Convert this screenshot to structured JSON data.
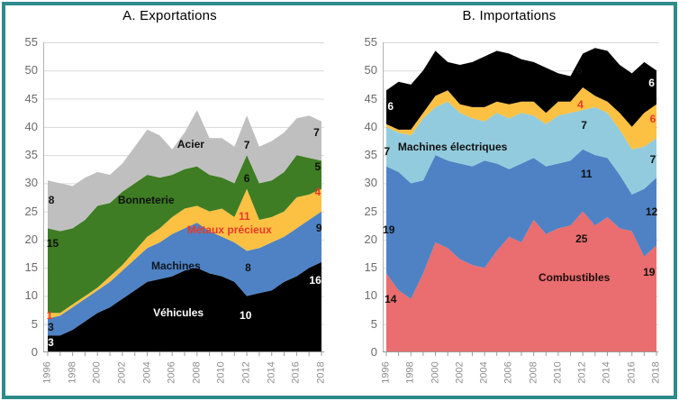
{
  "frame": {
    "border_color": "#2e8b8b",
    "background": "#ffffff"
  },
  "palette": {
    "gridline": "#d9d9d9",
    "axis_line": "#b3b3b3",
    "tick_line": "#9a9a9a",
    "red_label": "#e8392a",
    "y_label_color": "#6b6b6b",
    "x_label_color": "#8c8c8c"
  },
  "chart_data": [
    {
      "title": "A. Exportations",
      "type": "area",
      "stacked": true,
      "grid": true,
      "ylim": [
        0,
        55
      ],
      "y_ticks": [
        0,
        5,
        10,
        15,
        20,
        25,
        30,
        35,
        40,
        45,
        50,
        55
      ],
      "x": [
        1996,
        1997,
        1998,
        1999,
        2000,
        2001,
        2002,
        2003,
        2004,
        2005,
        2006,
        2007,
        2008,
        2009,
        2010,
        2011,
        2012,
        2013,
        2014,
        2015,
        2016,
        2017,
        2018
      ],
      "x_tick_labels": [
        "1996",
        "1998",
        "2000",
        "2002",
        "2004",
        "2006",
        "2008",
        "2010",
        "2012",
        "2014",
        "2016",
        "2018"
      ],
      "series": [
        {
          "id": "vehicules",
          "label": "Véhicules",
          "color": "#000000",
          "values": [
            3,
            3,
            4,
            5.5,
            7,
            8,
            9.5,
            11,
            12.5,
            13,
            13.5,
            14.5,
            15,
            14,
            13.5,
            12.5,
            10,
            10.5,
            11,
            12.5,
            13.5,
            15,
            16
          ]
        },
        {
          "id": "machines",
          "label": "Machines",
          "color": "#4e82c4",
          "values": [
            3,
            3.5,
            4,
            4,
            4,
            4.5,
            5,
            5.5,
            6,
            6.5,
            7.5,
            7.5,
            8,
            7.5,
            7,
            7,
            8,
            8,
            8.5,
            8,
            8.5,
            8.5,
            9
          ]
        },
        {
          "id": "metaux-precieux",
          "label": "Métaux précieux",
          "color": "#fcc143",
          "values": [
            1,
            0.5,
            0.5,
            0.5,
            0.5,
            1,
            1,
            1.5,
            2,
            2.5,
            3,
            3.5,
            3,
            3.5,
            5,
            4.5,
            11,
            5,
            4.5,
            4.5,
            5.5,
            4.5,
            4
          ]
        },
        {
          "id": "bonneterie",
          "label": "Bonneterie",
          "color": "#3e7d23",
          "values": [
            15,
            14.5,
            13.5,
            13.5,
            14.5,
            13,
            13,
            12,
            11,
            9,
            7.5,
            7,
            7,
            6.5,
            5.5,
            6,
            6,
            6.5,
            6.5,
            7,
            7.5,
            6.5,
            5
          ]
        },
        {
          "id": "acier",
          "label": "Acier",
          "color": "#bfbfbf",
          "values": [
            8.5,
            8.5,
            7.5,
            7.5,
            6,
            5,
            5,
            6.5,
            8,
            7.5,
            4.5,
            6.5,
            10,
            6.5,
            7,
            6.5,
            7,
            6.5,
            7,
            7,
            6.5,
            7.5,
            7
          ]
        }
      ],
      "annotations": [
        {
          "text": "Acier",
          "year": 2007.5,
          "value": 37.0,
          "color": "#111111"
        },
        {
          "text": "7",
          "year": 2012.0,
          "value": 36.8,
          "color": "#111111"
        },
        {
          "text": "7",
          "year": 2017.6,
          "value": 39.0,
          "color": "#111111"
        },
        {
          "text": "Bonneterie",
          "year": 2003.9,
          "value": 27.0,
          "color": "#111111"
        },
        {
          "text": "6",
          "year": 2012.0,
          "value": 30.8,
          "color": "#111111"
        },
        {
          "text": "5",
          "year": 2017.7,
          "value": 33.0,
          "color": "#111111"
        },
        {
          "text": "8",
          "year": 1996.3,
          "value": 27.0,
          "color": "#111111"
        },
        {
          "text": "15",
          "year": 1996.4,
          "value": 19.3,
          "color": "#111111"
        },
        {
          "text": "Métaux précieux",
          "year": 2010.6,
          "value": 21.8,
          "color": "#e8392a"
        },
        {
          "text": "11",
          "year": 2011.8,
          "value": 24.2,
          "color": "#e8392a"
        },
        {
          "text": "4",
          "year": 2017.7,
          "value": 28.4,
          "color": "#e8392a"
        },
        {
          "text": "1",
          "year": 1996.15,
          "value": 6.6,
          "color": "#e8392a"
        },
        {
          "text": "Machines",
          "year": 2006.3,
          "value": 15.4,
          "color": "#10161f"
        },
        {
          "text": "8",
          "year": 2012.1,
          "value": 15.0,
          "color": "#111111"
        },
        {
          "text": "9",
          "year": 2017.8,
          "value": 22.0,
          "color": "#111111"
        },
        {
          "text": "3",
          "year": 1996.25,
          "value": 4.5,
          "color": "#111111"
        },
        {
          "text": "Véhicules",
          "year": 2006.5,
          "value": 7.1,
          "color": "#ffffff"
        },
        {
          "text": "10",
          "year": 2011.9,
          "value": 6.5,
          "color": "#ffffff"
        },
        {
          "text": "16",
          "year": 2017.5,
          "value": 12.8,
          "color": "#ffffff"
        },
        {
          "text": "3",
          "year": 1996.25,
          "value": 1.8,
          "color": "#ffffff"
        }
      ]
    },
    {
      "title": "B. Importations",
      "type": "area",
      "stacked": true,
      "grid": true,
      "ylim": [
        0,
        55
      ],
      "y_ticks": [
        0,
        5,
        10,
        15,
        20,
        25,
        30,
        35,
        40,
        45,
        50,
        55
      ],
      "x": [
        1996,
        1997,
        1998,
        1999,
        2000,
        2001,
        2002,
        2003,
        2004,
        2005,
        2006,
        2007,
        2008,
        2009,
        2010,
        2011,
        2012,
        2013,
        2014,
        2015,
        2016,
        2017,
        2018
      ],
      "x_tick_labels": [
        "1996",
        "1998",
        "2000",
        "2002",
        "2004",
        "2006",
        "2008",
        "2010",
        "2012",
        "2014",
        "2016",
        "2018"
      ],
      "series": [
        {
          "id": "combustibles",
          "label": "Combustibles",
          "color": "#ea6d6f",
          "values": [
            14,
            11,
            9.5,
            14,
            19.5,
            18.5,
            16.5,
            15.5,
            15,
            18,
            20.5,
            19.5,
            23.5,
            21,
            22,
            22.5,
            25,
            22.5,
            24,
            22,
            21.5,
            17,
            19
          ]
        },
        {
          "id": "serie-bleue",
          "label": "",
          "color": "#4e82c4",
          "values": [
            19,
            21,
            20.5,
            16.5,
            15.5,
            15.5,
            17,
            17.5,
            19,
            15.5,
            12,
            14,
            11,
            12,
            11.5,
            11.5,
            11,
            12.5,
            10.5,
            9.5,
            6.5,
            12,
            12
          ]
        },
        {
          "id": "machines-electriques",
          "label": "Machines électriques",
          "color": "#92cbdd",
          "values": [
            7,
            7,
            8.5,
            11,
            8.5,
            10.5,
            9,
            8.5,
            7,
            9,
            9,
            9,
            7.5,
            7.5,
            8.5,
            8.5,
            7,
            8.5,
            8,
            8,
            8,
            7.5,
            7
          ]
        },
        {
          "id": "serie-jaune",
          "label": "",
          "color": "#fcc143",
          "values": [
            0.5,
            0.5,
            1,
            1,
            2,
            2,
            1.5,
            2,
            2.5,
            2,
            2.5,
            2,
            2.5,
            2,
            2.5,
            2,
            4,
            2,
            2,
            3,
            4,
            6,
            6
          ]
        },
        {
          "id": "serie-noire",
          "label": "",
          "color": "#000000",
          "values": [
            6,
            8.5,
            8,
            7.5,
            8,
            5,
            7,
            8,
            9,
            9,
            9,
            7.5,
            7,
            8,
            5,
            4.5,
            6,
            8.5,
            9,
            8.5,
            9.5,
            9,
            6
          ]
        }
      ],
      "annotations": [
        {
          "text": "6",
          "year": 1996.35,
          "value": 43.7,
          "color": "#ffffff"
        },
        {
          "text": "7",
          "year": 1996.05,
          "value": 35.7,
          "color": "#111111"
        },
        {
          "text": "Machines électriques",
          "year": 2001.4,
          "value": 36.5,
          "color": "#111111"
        },
        {
          "text": "19",
          "year": 1996.2,
          "value": 21.7,
          "color": "#111111"
        },
        {
          "text": "14",
          "year": 1996.35,
          "value": 9.4,
          "color": "#111111"
        },
        {
          "text": "6",
          "year": 2011.7,
          "value": 50.0,
          "color": "#111111"
        },
        {
          "text": "4",
          "year": 2011.8,
          "value": 44.0,
          "color": "#e8392a"
        },
        {
          "text": "7",
          "year": 2012.1,
          "value": 40.3,
          "color": "#111111"
        },
        {
          "text": "11",
          "year": 2012.3,
          "value": 31.7,
          "color": "#111111"
        },
        {
          "text": "25",
          "year": 2011.9,
          "value": 20.1,
          "color": "#111111"
        },
        {
          "text": "Combustibles",
          "year": 2011.3,
          "value": 13.3,
          "color": "#1c0d0e"
        },
        {
          "text": "6",
          "year": 2017.6,
          "value": 47.8,
          "color": "#ffffff"
        },
        {
          "text": "6",
          "year": 2017.7,
          "value": 41.4,
          "color": "#e8392a"
        },
        {
          "text": "7",
          "year": 2017.7,
          "value": 34.2,
          "color": "#111111"
        },
        {
          "text": "12",
          "year": 2017.6,
          "value": 24.9,
          "color": "#111111"
        },
        {
          "text": "19",
          "year": 2017.4,
          "value": 14.2,
          "color": "#111111"
        }
      ]
    }
  ],
  "charts": [
    {
      "title": "A. Exportations"
    },
    {
      "title": "B. Importations"
    }
  ]
}
